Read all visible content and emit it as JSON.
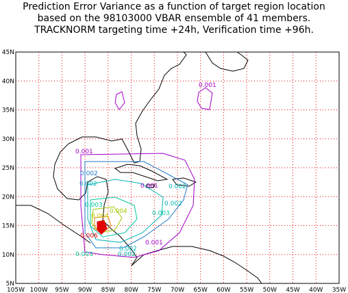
{
  "title": [
    "Prediction Error Variance as a function of target region location",
    "based on the 98103000 VBAR ensemble of 41 members.",
    "TRACKNORM targeting time +24h, Verification time +96h."
  ],
  "x_labels": [
    "105W",
    "100W",
    "95W",
    "90W",
    "85W",
    "80W",
    "75W",
    "70W",
    "65W",
    "60W",
    "55W",
    "50W",
    "45W",
    "40W",
    "35W"
  ],
  "y_labels": [
    "5N",
    "10N",
    "15N",
    "20N",
    "25N",
    "30N",
    "35N",
    "40N",
    "45N"
  ],
  "contour_labels": [
    {
      "text": "0.001",
      "color": "#a000c8"
    },
    {
      "text": "0.001",
      "color": "#a000c8"
    },
    {
      "text": "0.002",
      "color": "#1e78c8"
    },
    {
      "text": "0.002",
      "color": "#00b4b4"
    },
    {
      "text": "0.001",
      "color": "#a000c8"
    },
    {
      "text": "0.002",
      "color": "#00b4b4"
    },
    {
      "text": "0.003",
      "color": "#00c8a0"
    },
    {
      "text": "0.004",
      "color": "#a0c800"
    },
    {
      "text": "0.002",
      "color": "#00b4b4"
    },
    {
      "text": "0.004",
      "color": "#c8c800"
    },
    {
      "text": "0.006",
      "color": "#e00000"
    },
    {
      "text": "0.003",
      "color": "#00c8a0"
    },
    {
      "text": "0.001",
      "color": "#a000c8"
    },
    {
      "text": "0.002",
      "color": "#00b4b4"
    },
    {
      "text": "0.003",
      "color": "#00c8a0"
    },
    {
      "text": "0.002",
      "color": "#00b4b4"
    }
  ]
}
